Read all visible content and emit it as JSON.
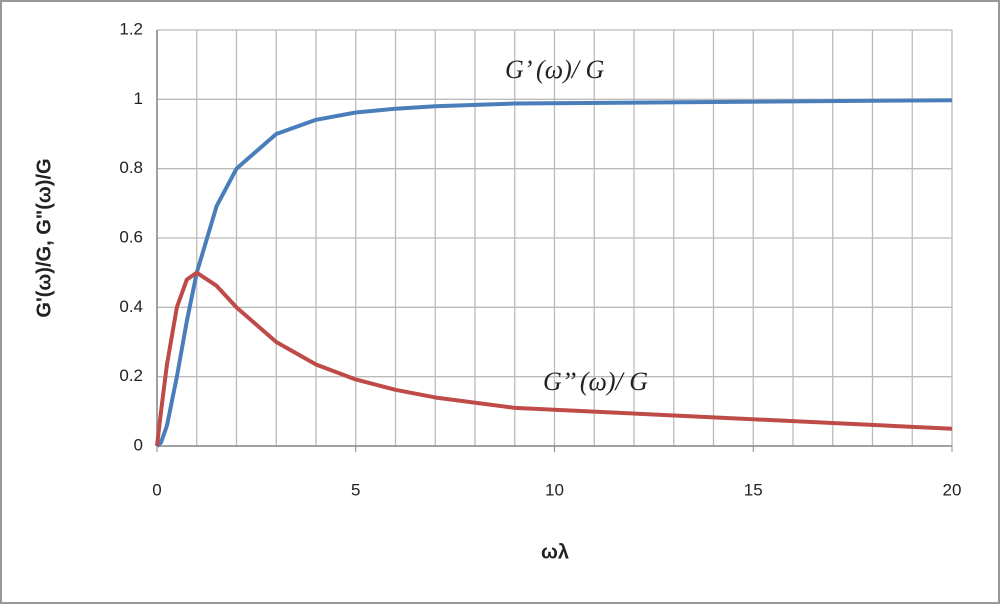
{
  "chart_data": {
    "type": "line",
    "x_label": "ωλ",
    "y_label": "G'(ω)/G,  G\"(ω)/G",
    "annotations": [
      "G’ (ω)/ G",
      "G’’ (ω)/ G"
    ],
    "x": [
      0,
      0.1,
      0.25,
      0.5,
      0.75,
      1,
      1.5,
      2,
      3,
      4,
      5,
      6,
      7,
      9,
      20
    ],
    "series": [
      {
        "name": "G'(ω)/G",
        "color": "#4a7ebb",
        "values": [
          0,
          0.0099,
          0.0588,
          0.2,
          0.36,
          0.5,
          0.692,
          0.8,
          0.9,
          0.941,
          0.962,
          0.973,
          0.98,
          0.988,
          0.9975
        ]
      },
      {
        "name": "G\"(ω)/G",
        "color": "#be4b48",
        "values": [
          0,
          0.099,
          0.235,
          0.4,
          0.48,
          0.5,
          0.462,
          0.4,
          0.3,
          0.235,
          0.192,
          0.162,
          0.14,
          0.11,
          0.0499
        ]
      }
    ],
    "xlim": [
      0,
      20
    ],
    "xticks": [
      0,
      5,
      10,
      15,
      20
    ],
    "x_grid": [
      0,
      1,
      2,
      3,
      4,
      5,
      6,
      7,
      8,
      9,
      10,
      11,
      12,
      13,
      14,
      15,
      16,
      17,
      18,
      19,
      20
    ],
    "ylim": [
      0,
      1.2
    ],
    "yticks": [
      0,
      {
        "value": 0.2,
        "label": "0.2"
      },
      {
        "value": 0.4,
        "label": "0.4"
      },
      {
        "value": 0.6,
        "label": "0.6"
      },
      {
        "value": 0.8,
        "label": "0.8"
      },
      1,
      {
        "value": 1.2,
        "label": "1.2"
      }
    ],
    "grid": true
  }
}
